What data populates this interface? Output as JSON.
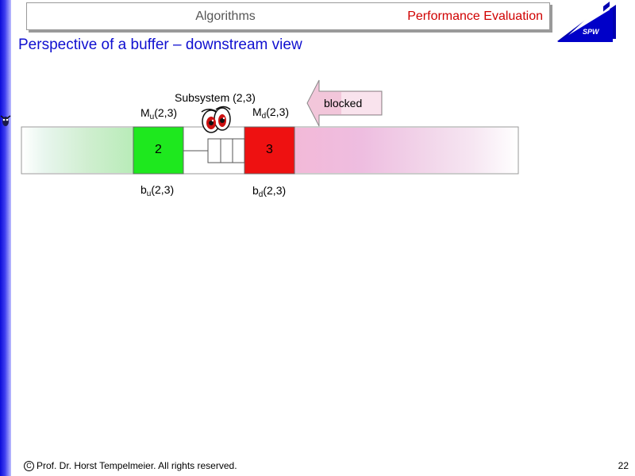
{
  "header": {
    "left_title": "Algorithms",
    "right_title": "Performance Evaluation"
  },
  "logo": {
    "text": "SPW"
  },
  "slide": {
    "title": "Perspective of a buffer – downstream view"
  },
  "diagram": {
    "subsystem_label": "Subsystem (2,3)",
    "blocked_label": "blocked",
    "mu": {
      "base": "M",
      "sub": "u",
      "rest": "(2,3)"
    },
    "md": {
      "base": "M",
      "sub": "d",
      "rest": "(2,3)"
    },
    "bu": {
      "base": "b",
      "sub": "u",
      "rest": "(2,3)"
    },
    "bd": {
      "base": "b",
      "sub": "d",
      "rest": "(2,3)"
    },
    "station_up": {
      "number": "2",
      "color": "#1ee81e"
    },
    "station_down": {
      "number": "3",
      "color": "#ee1111"
    }
  },
  "footer": {
    "copyright_symbol": "C",
    "copyright_text": "Prof. Dr. Horst Tempelmeier. All rights reserved.",
    "page_number": "22"
  }
}
